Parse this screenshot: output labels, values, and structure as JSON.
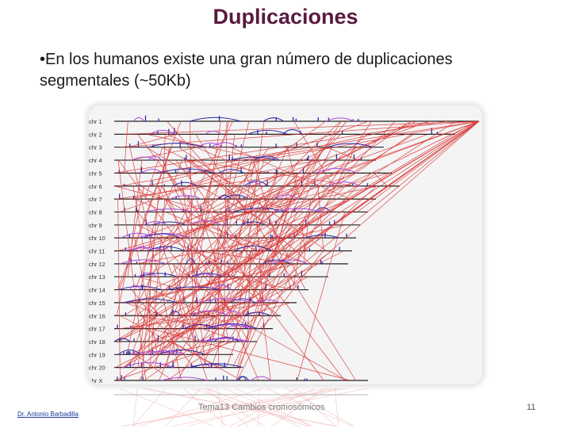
{
  "slide": {
    "title": "Duplicaciones",
    "bullet_marker": "•",
    "bullet_text": "En los humanos existe una gran número de duplicaciones segmentales (~50Kb)",
    "footer_author": "Dr. Antonio Barbadilla",
    "footer_topic": "Tema13 Cambios cromosómicos",
    "page_number": "11"
  },
  "figure": {
    "chromosome_labels": [
      "chr 1",
      "chr 2",
      "chr 3",
      "chr 4",
      "chr 5",
      "chr 6",
      "chr 7",
      "chr 8",
      "chr 9",
      "chr 10",
      "chr 11",
      "chr 12",
      "chr 13",
      "chr 14",
      "chr 15",
      "chr 16",
      "chr 17",
      "chr 18",
      "chr 19",
      "chr 20",
      "chr X"
    ],
    "link_color": "#d93030",
    "track_color": "#2a2aa8",
    "highlight_color": "#a84adf"
  }
}
